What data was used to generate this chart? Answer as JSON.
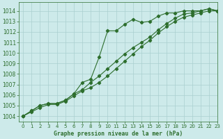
{
  "bg_color": "#cdeaea",
  "grid_color": "#aacfcf",
  "line_color": "#2d6e2d",
  "title": "Graphe pression niveau de la mer (hPa)",
  "xlim": [
    -0.5,
    23
  ],
  "ylim": [
    1003.5,
    1014.8
  ],
  "yticks": [
    1004,
    1005,
    1006,
    1007,
    1008,
    1009,
    1010,
    1011,
    1012,
    1013,
    1014
  ],
  "xticks": [
    0,
    1,
    2,
    3,
    4,
    5,
    6,
    7,
    8,
    9,
    10,
    11,
    12,
    13,
    14,
    15,
    16,
    17,
    18,
    19,
    20,
    21,
    22,
    23
  ],
  "series1_x": [
    0,
    1,
    2,
    3,
    4,
    5,
    6,
    7,
    8,
    9,
    10,
    11,
    12,
    13,
    14,
    15,
    16,
    17,
    18,
    19,
    20,
    21,
    22,
    23
  ],
  "series1_y": [
    1004.0,
    1004.5,
    1005.0,
    1005.2,
    1005.2,
    1005.5,
    1006.1,
    1007.2,
    1007.5,
    1009.6,
    1012.1,
    1012.1,
    1012.7,
    1013.2,
    1012.9,
    1013.0,
    1013.5,
    1013.8,
    1013.8,
    1014.0,
    1014.0,
    1014.0,
    1014.2,
    1014.0
  ],
  "series2_x": [
    0,
    1,
    2,
    3,
    4,
    5,
    6,
    7,
    8,
    9,
    10,
    11,
    12,
    13,
    14,
    15,
    16,
    17,
    18,
    19,
    20,
    21,
    22,
    23
  ],
  "series2_y": [
    1004.0,
    1004.5,
    1005.0,
    1005.2,
    1005.2,
    1005.5,
    1006.1,
    1006.5,
    1007.2,
    1007.8,
    1008.5,
    1009.2,
    1009.9,
    1010.5,
    1011.0,
    1011.5,
    1012.2,
    1012.8,
    1013.3,
    1013.7,
    1013.8,
    1014.0,
    1014.2,
    1014.0
  ],
  "series3_x": [
    0,
    1,
    2,
    3,
    4,
    5,
    6,
    7,
    8,
    9,
    10,
    11,
    12,
    13,
    14,
    15,
    16,
    17,
    18,
    19,
    20,
    21,
    22,
    23
  ],
  "series3_y": [
    1004.0,
    1004.4,
    1004.8,
    1005.1,
    1005.1,
    1005.4,
    1005.9,
    1006.4,
    1006.7,
    1007.2,
    1007.8,
    1008.5,
    1009.2,
    1009.9,
    1010.6,
    1011.2,
    1011.9,
    1012.5,
    1013.0,
    1013.4,
    1013.6,
    1013.8,
    1014.0,
    1014.0
  ]
}
